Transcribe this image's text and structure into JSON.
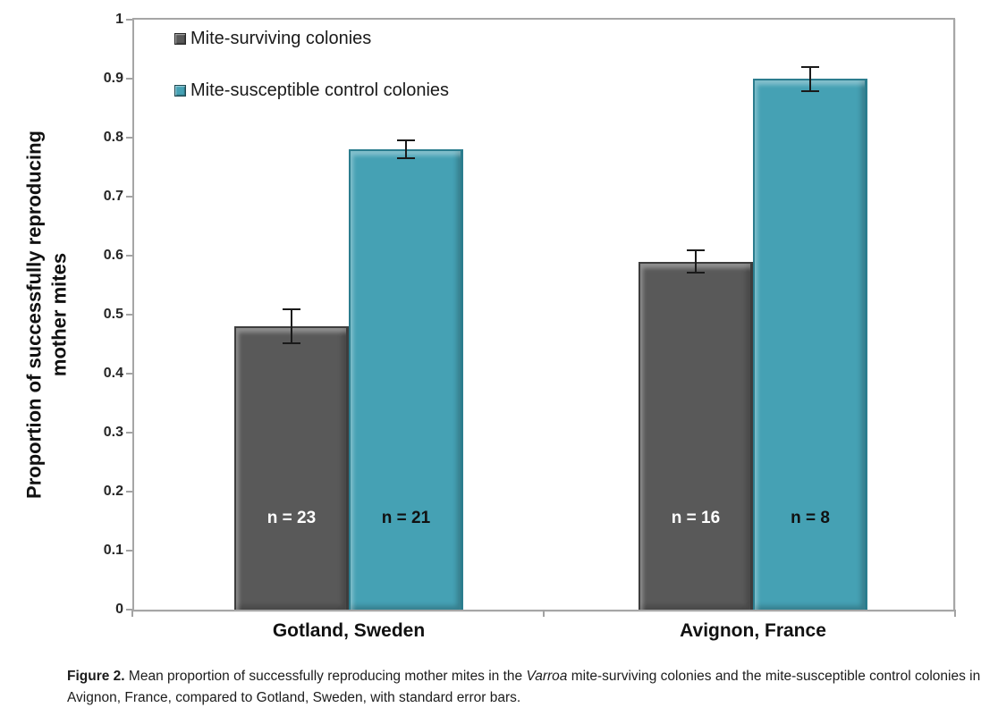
{
  "chart_data": {
    "type": "bar",
    "title": "",
    "ylabel": "Proportion of successfully reproducing mother mites",
    "ylabel_line1": "Proportion of successfully reproducing",
    "ylabel_line2": "mother mites",
    "xlabel": "",
    "categories": [
      "Gotland, Sweden",
      "Avignon, France"
    ],
    "series": [
      {
        "name": "Mite-surviving colonies",
        "color": "#595959",
        "border_color": "#3d3d3d",
        "values": [
          0.48,
          0.59
        ],
        "errors": [
          0.03,
          0.02
        ],
        "n_labels": [
          "n = 23",
          "n = 16"
        ],
        "n_label_color": "#ffffff"
      },
      {
        "name": "Mite-susceptible control colonies",
        "color": "#45a1b4",
        "border_color": "#2b7d8e",
        "values": [
          0.78,
          0.9
        ],
        "errors": [
          0.017,
          0.022
        ],
        "n_labels": [
          "n = 21",
          "n = 8"
        ],
        "n_label_color": "#111111"
      }
    ],
    "ylim": [
      0,
      1
    ],
    "ytick_labels": [
      "0",
      "0.1",
      "0.2",
      "0.3",
      "0.4",
      "0.5",
      "0.6",
      "0.7",
      "0.8",
      "0.9",
      "1"
    ],
    "legend_position": "top-left",
    "grid": false,
    "error_bar_color": "#1a1a1a",
    "axis_color": "#a3a3a3"
  },
  "caption": {
    "label": "Figure 2.",
    "text_before_italic": " Mean proportion of successfully reproducing mother mites in the ",
    "italic": "Varroa",
    "text_after_italic": " mite-surviving colonies and the mite-susceptible control colonies in Avignon, France, compared to Gotland, Sweden, with standard error bars."
  }
}
